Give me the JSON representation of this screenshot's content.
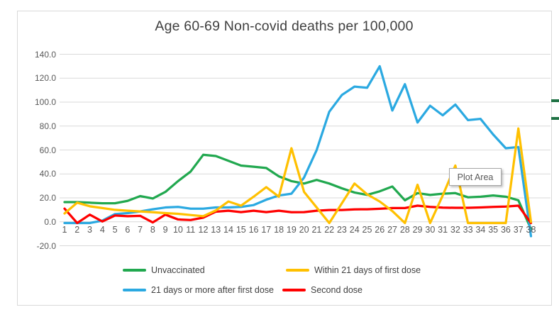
{
  "chart": {
    "title": "Age 60-69 Non-covid deaths per 100,000",
    "tooltip": {
      "label": "Plot Area"
    },
    "frame_border_color": "#D9D9D9",
    "gridline_color": "#D9D9D9",
    "axis_text_color": "#595959"
  },
  "decorations": {
    "cell_dash_color": "#1F7244"
  },
  "chart_data": {
    "type": "line",
    "title": "Age 60-69 Non-covid deaths per 100,000",
    "xlabel": "",
    "ylabel": "",
    "ylim": [
      -20,
      140
    ],
    "ytick_step": 20,
    "y_tick_labels": [
      "140.0",
      "120.0",
      "100.0",
      "80.0",
      "60.0",
      "40.0",
      "20.0",
      "0.0",
      "-20.0"
    ],
    "categories": [
      1,
      2,
      3,
      4,
      5,
      6,
      7,
      8,
      9,
      10,
      11,
      12,
      13,
      14,
      15,
      16,
      17,
      18,
      19,
      20,
      21,
      22,
      23,
      24,
      25,
      26,
      27,
      28,
      29,
      30,
      31,
      32,
      33,
      34,
      35,
      36,
      37,
      38
    ],
    "grid": true,
    "legend_position": "bottom",
    "series": [
      {
        "name": "Unvaccinated",
        "color": "#21A84F",
        "values": [
          16.5,
          16.5,
          16,
          15.5,
          15.5,
          17.5,
          21.5,
          19.5,
          25,
          34,
          42,
          56,
          55,
          51,
          47,
          46,
          45,
          38,
          34,
          32,
          35,
          32,
          28,
          24.5,
          22.5,
          25.5,
          29.5,
          18,
          24,
          22.5,
          23.5,
          24,
          20.5,
          21,
          22,
          21,
          18,
          -6
        ]
      },
      {
        "name": "Within 21 days of first dose",
        "color": "#FFC000",
        "values": [
          7,
          16,
          13,
          11.5,
          10,
          9.3,
          8.7,
          8,
          7.3,
          6.7,
          5.7,
          4.7,
          9.5,
          17,
          13.5,
          21,
          29,
          21,
          61.5,
          25,
          12,
          -1,
          15.5,
          32,
          23,
          17,
          9,
          -1,
          31,
          -1,
          22,
          47,
          -1,
          -1,
          -1,
          -1,
          78,
          0
        ]
      },
      {
        "name": "21 days or more after first dose",
        "color": "#2BA9E1",
        "values": [
          -1,
          -1,
          -1,
          1,
          6.5,
          7.3,
          8.7,
          10.5,
          12,
          12.5,
          11,
          11,
          12,
          12,
          12.5,
          14,
          18.5,
          22,
          23.5,
          37,
          60,
          92,
          106,
          113,
          112,
          130,
          93,
          115,
          83,
          97,
          89,
          98,
          85,
          86,
          73,
          61.5,
          62.5,
          -12
        ]
      },
      {
        "name": "Second dose",
        "color": "#FF0000",
        "values": [
          11,
          -1,
          6,
          0.3,
          5.3,
          4.7,
          5,
          -0.5,
          6,
          2,
          1.5,
          3.5,
          8.5,
          9.3,
          8.1,
          9.3,
          8.1,
          9.3,
          8,
          8.1,
          9.3,
          9.9,
          9.9,
          10.4,
          10.5,
          10.9,
          11.5,
          11.5,
          13.5,
          12.5,
          11.9,
          11.7,
          11.7,
          12,
          12.5,
          12.8,
          13.5,
          -1
        ]
      }
    ]
  }
}
